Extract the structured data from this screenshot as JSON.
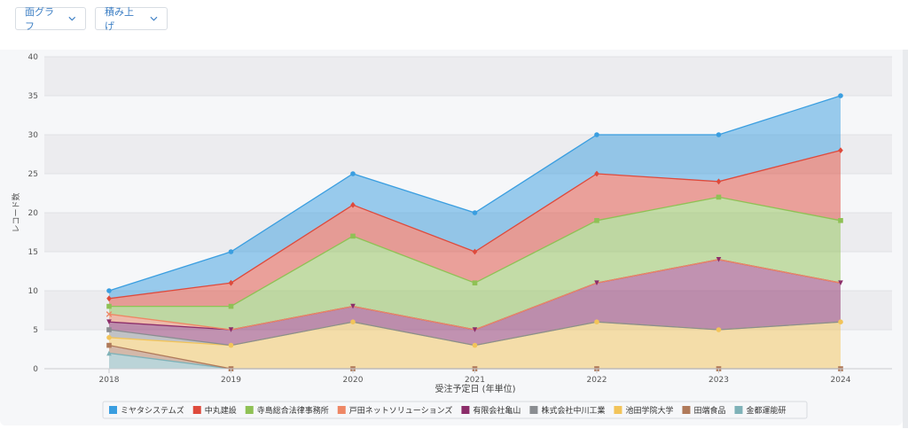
{
  "toolbar": {
    "chart_type_label": "面グラフ",
    "stack_label": "積み上げ"
  },
  "chart_data": {
    "type": "area",
    "stacked": true,
    "x": [
      "2018",
      "2019",
      "2020",
      "2021",
      "2022",
      "2023",
      "2024"
    ],
    "xlabel": "受注予定日 (年単位)",
    "ylabel": "レコード数",
    "ylim": [
      0,
      40
    ],
    "yticks": [
      0,
      5,
      10,
      15,
      20,
      25,
      30,
      35,
      40
    ],
    "grid": true,
    "legend_position": "bottom",
    "series": [
      {
        "name": "金都運能研",
        "color": "#7fb2b8",
        "marker": "triangle",
        "values": [
          2,
          0,
          0,
          0,
          0,
          0,
          0
        ]
      },
      {
        "name": "田端食品",
        "color": "#b07a5a",
        "marker": "square",
        "values": [
          1,
          0,
          0,
          0,
          0,
          0,
          0
        ]
      },
      {
        "name": "池田学院大学",
        "color": "#f2c45a",
        "marker": "circle",
        "values": [
          1,
          3,
          6,
          3,
          6,
          5,
          6
        ]
      },
      {
        "name": "株式会社中川工業",
        "color": "#8a8d91",
        "marker": "square",
        "values": [
          1,
          0,
          0,
          0,
          0,
          0,
          0
        ]
      },
      {
        "name": "有限会社亀山",
        "color": "#8c2d6a",
        "marker": "triangle-down",
        "values": [
          1,
          2,
          2,
          2,
          5,
          9,
          5
        ]
      },
      {
        "name": "戸田ネットソリューションズ",
        "color": "#ee8765",
        "marker": "x",
        "values": [
          1,
          0,
          0,
          0,
          0,
          0,
          0
        ]
      },
      {
        "name": "寺島総合法律事務所",
        "color": "#8fc155",
        "marker": "square",
        "values": [
          1,
          3,
          9,
          6,
          8,
          8,
          8
        ]
      },
      {
        "name": "中丸建設",
        "color": "#de4a3c",
        "marker": "diamond",
        "values": [
          1,
          3,
          4,
          4,
          6,
          2,
          9
        ]
      },
      {
        "name": "ミヤタシステムズ",
        "color": "#3a9ee0",
        "marker": "circle",
        "values": [
          1,
          4,
          4,
          5,
          5,
          6,
          7
        ]
      }
    ],
    "legend_order": [
      "ミヤタシステムズ",
      "中丸建設",
      "寺島総合法律事務所",
      "戸田ネットソリューションズ",
      "有限会社亀山",
      "株式会社中川工業",
      "池田学院大学",
      "田端食品",
      "金都運能研"
    ]
  }
}
